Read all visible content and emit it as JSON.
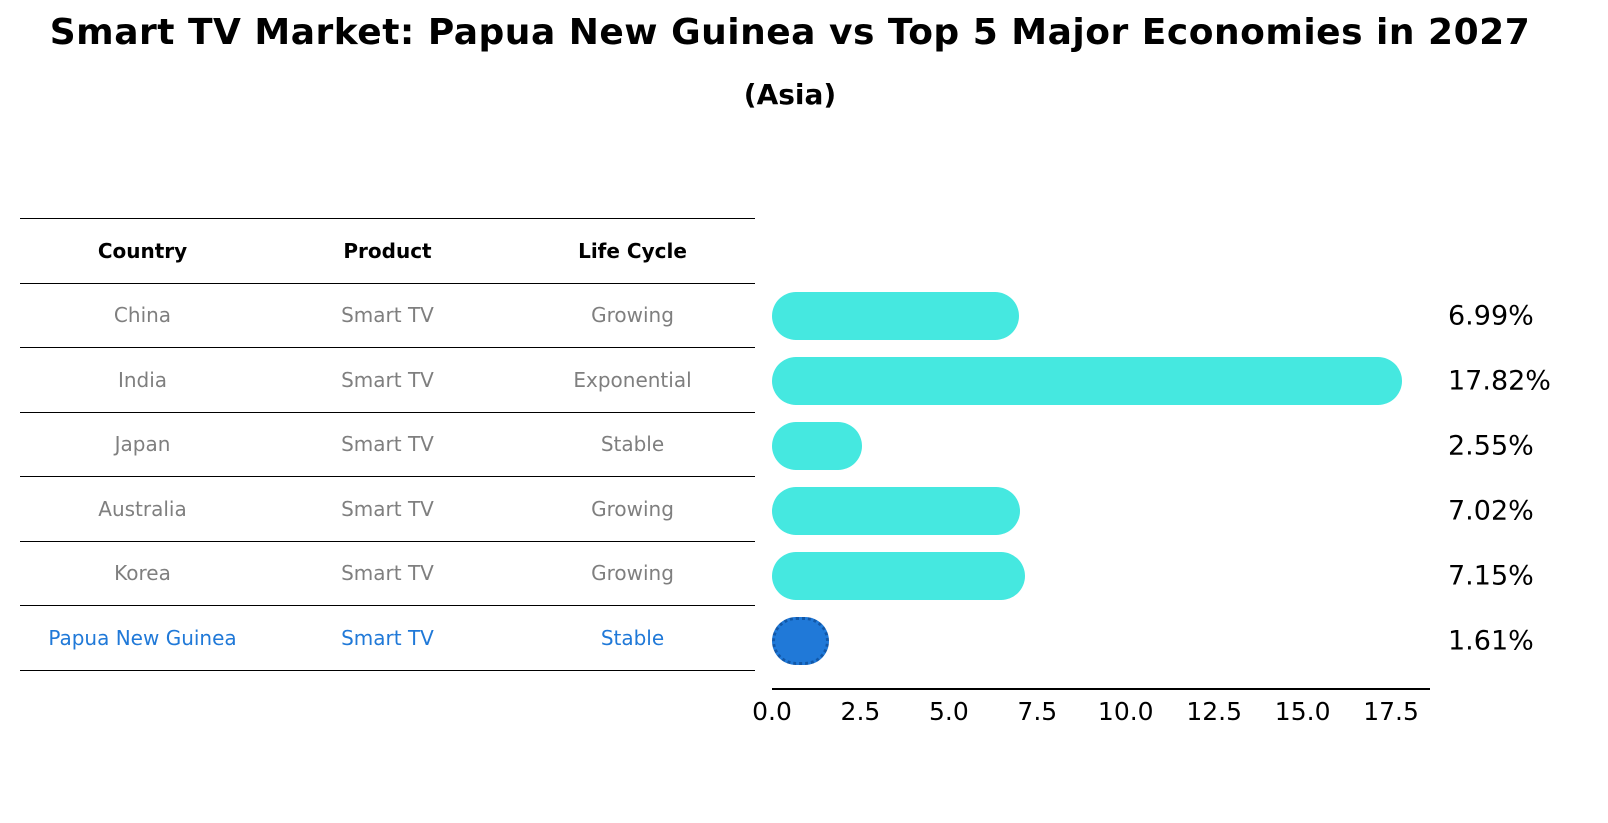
{
  "title": "Smart TV Market: Papua New Guinea vs Top 5 Major Economies in 2027",
  "subtitle": "(Asia)",
  "table": {
    "headers": [
      "Country",
      "Product",
      "Life Cycle"
    ],
    "rows": [
      {
        "country": "China",
        "product": "Smart TV",
        "life_cycle": "Growing"
      },
      {
        "country": "India",
        "product": "Smart TV",
        "life_cycle": "Exponential"
      },
      {
        "country": "Japan",
        "product": "Smart TV",
        "life_cycle": "Stable"
      },
      {
        "country": "Australia",
        "product": "Smart TV",
        "life_cycle": "Growing"
      },
      {
        "country": "Korea",
        "product": "Smart TV",
        "life_cycle": "Growing"
      },
      {
        "country": "Papua New Guinea",
        "product": "Smart TV",
        "life_cycle": "Stable"
      }
    ]
  },
  "chart_data": {
    "type": "bar",
    "orientation": "horizontal",
    "categories": [
      "China",
      "India",
      "Japan",
      "Australia",
      "Korea",
      "Papua New Guinea"
    ],
    "values": [
      6.99,
      17.82,
      2.55,
      7.02,
      7.15,
      1.61
    ],
    "value_labels": [
      "6.99%",
      "17.82%",
      "2.55%",
      "7.02%",
      "7.15%",
      "1.61%"
    ],
    "unit": "%",
    "x_ticks": [
      "0.0",
      "2.5",
      "5.0",
      "7.5",
      "10.0",
      "12.5",
      "15.0",
      "17.5"
    ],
    "xlim": [
      0,
      18.6
    ],
    "grid": false,
    "legend": "none",
    "bar_color": "#45E8E0",
    "highlight_color": "#2079D8",
    "highlight_edge_color": "#1258A8",
    "highlight_index": 5
  },
  "colors": {
    "background": "#FFFFFF",
    "table_text": "#7F7F7F",
    "header_text": "#000000",
    "highlight_text": "#2079D8",
    "line": "#000000"
  }
}
